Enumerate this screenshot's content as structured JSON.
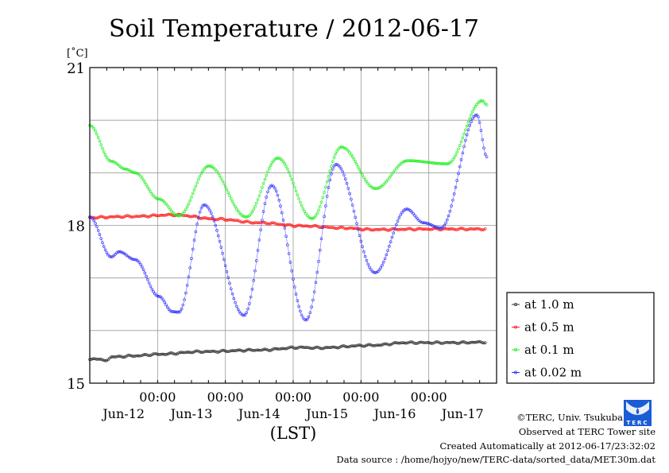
{
  "chart_data": {
    "type": "line",
    "title": "Soil Temperature / 2012-06-17",
    "ylabel": "[˚C]",
    "xlabel": "(LST)",
    "ylim": [
      15,
      21
    ],
    "ytick_labels": [
      "15",
      "18",
      "21"
    ],
    "y_grid": [
      16,
      17,
      18,
      19,
      20
    ],
    "x_unit": "hours since Jun-12 00:00",
    "xlim": [
      0,
      144
    ],
    "x_time_labels": [
      "00:00",
      "00:00",
      "00:00",
      "00:00",
      "00:00"
    ],
    "x_day_labels": [
      "Jun-12",
      "Jun-13",
      "Jun-14",
      "Jun-15",
      "Jun-16",
      "Jun-17"
    ],
    "legend_position": "right",
    "series": [
      {
        "name": "at 1.0 m",
        "color": "#333333",
        "points": [
          [
            0,
            15.45
          ],
          [
            3,
            15.47
          ],
          [
            5,
            15.42
          ],
          [
            8,
            15.5
          ],
          [
            16,
            15.52
          ],
          [
            24,
            15.55
          ],
          [
            40,
            15.6
          ],
          [
            60,
            15.63
          ],
          [
            75,
            15.68
          ],
          [
            80,
            15.67
          ],
          [
            100,
            15.72
          ],
          [
            112,
            15.77
          ],
          [
            130,
            15.77
          ],
          [
            140,
            15.78
          ]
        ]
      },
      {
        "name": "at 0.5 m",
        "color": "#ff2020",
        "points": [
          [
            0,
            18.15
          ],
          [
            15,
            18.17
          ],
          [
            30,
            18.2
          ],
          [
            45,
            18.12
          ],
          [
            60,
            18.05
          ],
          [
            75,
            17.99
          ],
          [
            90,
            17.95
          ],
          [
            100,
            17.92
          ],
          [
            120,
            17.93
          ],
          [
            140,
            17.93
          ]
        ]
      },
      {
        "name": "at 0.1 m",
        "color": "#22ee22",
        "points": [
          [
            0,
            19.9
          ],
          [
            7.6,
            19.22
          ],
          [
            12.7,
            19.07
          ],
          [
            16,
            19.0
          ],
          [
            24.5,
            18.5
          ],
          [
            31.5,
            18.18
          ],
          [
            42.2,
            19.13
          ],
          [
            55.4,
            18.16
          ],
          [
            66.6,
            19.28
          ],
          [
            78.7,
            18.13
          ],
          [
            89.1,
            19.49
          ],
          [
            101.2,
            18.7
          ],
          [
            112.5,
            19.23
          ],
          [
            126.5,
            19.17
          ],
          [
            138.9,
            20.37
          ],
          [
            140.6,
            20.29
          ]
        ]
      },
      {
        "name": "at 0.02 m",
        "color": "#3030ff",
        "points": [
          [
            0,
            18.16
          ],
          [
            7.6,
            17.4
          ],
          [
            10.4,
            17.5
          ],
          [
            16,
            17.35
          ],
          [
            24.5,
            16.65
          ],
          [
            29.2,
            16.36
          ],
          [
            31.5,
            16.35
          ],
          [
            40.5,
            18.39
          ],
          [
            54.6,
            16.29
          ],
          [
            64.4,
            18.76
          ],
          [
            76.5,
            16.2
          ],
          [
            87.2,
            19.16
          ],
          [
            101,
            17.1
          ],
          [
            112.2,
            18.31
          ],
          [
            118.1,
            18.05
          ],
          [
            124.3,
            17.95
          ],
          [
            137,
            20.1
          ],
          [
            140.6,
            19.3
          ]
        ]
      }
    ]
  },
  "footer": {
    "copyright": "©TERC, Univ. Tsukuba",
    "site": "Observed at TERC Tower site",
    "created": "Created Automatically at 2012-06-17/23:32:02",
    "source": "Data source : /home/hojyo/new/TERC-data/sorted_data/MET.30m.dat",
    "logo_text": "TERC"
  }
}
